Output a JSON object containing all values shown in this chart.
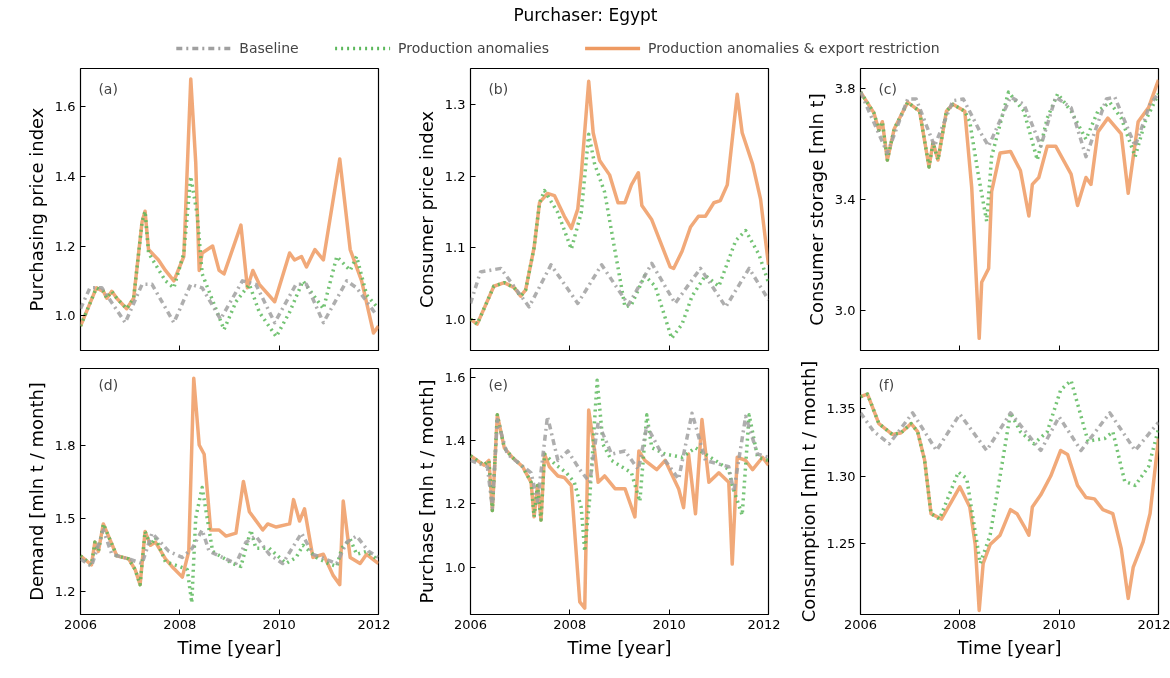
{
  "chart_data": [
    {
      "type": "line",
      "legend": "top",
      "ylabel": "Purchasing price index",
      "annotations": [
        "(a)"
      ],
      "xlim": [
        2006,
        2012
      ],
      "xticks": [
        2006,
        2008,
        2010,
        2012
      ],
      "ylim": [
        0.9,
        1.71
      ],
      "yticks": [
        {
          "value": 1,
          "label": "1.0"
        },
        1.2,
        1.4,
        1.6
      ],
      "tick_labels": "y",
      "series": [
        {
          "name": "Baseline",
          "color": "#a0a0a0",
          "line_style": "dashdot",
          "x": [
            2006,
            2006.19,
            2006.43,
            2006.9,
            2007.24,
            2007.44,
            2007.88,
            2008.22,
            2008.45,
            2008.82,
            2009.26,
            2009.53,
            2009.91,
            2010.34,
            2010.55,
            2010.89,
            2011.36,
            2011.56,
            2011.97
          ],
          "values": [
            1.02,
            1.08,
            1.08,
            0.98,
            1.09,
            1.09,
            0.98,
            1.09,
            1.08,
            0.99,
            1.1,
            1.09,
            0.98,
            1.09,
            1.09,
            0.98,
            1.1,
            1.08,
            1.0
          ]
        },
        {
          "name": "Production anomalies",
          "color": "#5cb85c",
          "line_style": "dotted",
          "x": [
            2006,
            2006.32,
            2006.46,
            2006.53,
            2006.63,
            2006.73,
            2006.93,
            2007.07,
            2007.24,
            2007.3,
            2007.37,
            2007.71,
            2007.88,
            2008.08,
            2008.22,
            2008.35,
            2008.45,
            2008.89,
            2009.13,
            2009.4,
            2009.6,
            2009.94,
            2010.21,
            2010.48,
            2010.89,
            2011.16,
            2011.43,
            2011.56,
            2011.76,
            2012
          ],
          "values": [
            0.97,
            1.08,
            1.07,
            1.05,
            1.07,
            1.05,
            1.02,
            1.05,
            1.27,
            1.3,
            1.18,
            1.1,
            1.08,
            1.18,
            1.4,
            1.29,
            1.12,
            0.96,
            1.04,
            1.09,
            1.01,
            0.94,
            1.01,
            1.1,
            1.02,
            1.17,
            1.13,
            1.17,
            1.06,
            1.02
          ]
        },
        {
          "name": "Production anomalies & export restriction",
          "color": "#ee9a62",
          "line_style": "solid",
          "x": [
            2006,
            2006.32,
            2006.46,
            2006.53,
            2006.63,
            2006.73,
            2006.93,
            2007.07,
            2007.24,
            2007.3,
            2007.37,
            2007.57,
            2007.71,
            2007.88,
            2008.08,
            2008.22,
            2008.32,
            2008.39,
            2008.45,
            2008.66,
            2008.79,
            2008.89,
            2009.23,
            2009.36,
            2009.47,
            2009.6,
            2009.91,
            2010.21,
            2010.31,
            2010.45,
            2010.55,
            2010.72,
            2010.89,
            2011.22,
            2011.43,
            2011.66,
            2011.9,
            2012
          ],
          "values": [
            0.97,
            1.08,
            1.07,
            1.05,
            1.07,
            1.05,
            1.02,
            1.05,
            1.27,
            1.3,
            1.19,
            1.16,
            1.13,
            1.1,
            1.17,
            1.68,
            1.44,
            1.13,
            1.18,
            1.2,
            1.13,
            1.12,
            1.26,
            1.08,
            1.13,
            1.09,
            1.04,
            1.18,
            1.16,
            1.17,
            1.14,
            1.19,
            1.16,
            1.45,
            1.19,
            1.1,
            0.95,
            0.97
          ]
        }
      ]
    },
    {
      "type": "line",
      "title": "Purchaser: Egypt",
      "ylabel": "Consumer price index",
      "annotations": [
        "(b)"
      ],
      "xlim": [
        2006,
        2012
      ],
      "xticks": [
        2006,
        2008,
        2010,
        2012
      ],
      "ylim": [
        0.956,
        1.351
      ],
      "yticks": [
        {
          "value": 1,
          "label": "1.0"
        },
        1.1,
        1.2,
        1.3
      ],
      "tick_labels": "y",
      "series": [
        {
          "color": "#a0a0a0",
          "line_style": "dashdot",
          "x": [
            2006,
            2006.2,
            2006.61,
            2007.18,
            2007.62,
            2008.16,
            2008.64,
            2009.18,
            2009.65,
            2010.12,
            2010.63,
            2011.14,
            2011.61,
            2012
          ],
          "values": [
            1.022,
            1.066,
            1.071,
            1.017,
            1.076,
            1.022,
            1.076,
            1.02,
            1.078,
            1.022,
            1.071,
            1.017,
            1.071,
            1.027
          ]
        },
        {
          "color": "#5cb85c",
          "line_style": "dotted",
          "x": [
            2006,
            2006.135,
            2006.47,
            2006.68,
            2006.88,
            2007.01,
            2007.11,
            2007.28,
            2007.39,
            2007.49,
            2007.76,
            2008.03,
            2008.23,
            2008.38,
            2008.5,
            2008.7,
            2009.11,
            2009.24,
            2009.51,
            2009.72,
            2010.05,
            2010.26,
            2010.46,
            2010.73,
            2011.0,
            2011.34,
            2011.54,
            2011.81,
            2012
          ],
          "values": [
            1.0,
            0.993,
            1.046,
            1.051,
            1.044,
            1.032,
            1.041,
            1.1,
            1.163,
            1.18,
            1.149,
            1.098,
            1.149,
            1.259,
            1.217,
            1.178,
            1.017,
            1.02,
            1.061,
            1.046,
            0.973,
            0.993,
            1.032,
            1.061,
            1.046,
            1.11,
            1.124,
            1.09,
            1.051
          ]
        },
        {
          "color": "#ee9a62",
          "line_style": "solid",
          "x": [
            2006,
            2006.135,
            2006.47,
            2006.68,
            2006.88,
            2007.01,
            2007.11,
            2007.28,
            2007.39,
            2007.55,
            2007.69,
            2007.89,
            2008.03,
            2008.16,
            2008.23,
            2008.38,
            2008.47,
            2008.6,
            2008.8,
            2008.97,
            2009.11,
            2009.24,
            2009.38,
            2009.45,
            2009.65,
            2010.02,
            2010.09,
            2010.26,
            2010.43,
            2010.59,
            2010.73,
            2010.9,
            2011.03,
            2011.17,
            2011.37,
            2011.47,
            2011.68,
            2011.84,
            2012
          ],
          "values": [
            1.0,
            0.993,
            1.046,
            1.051,
            1.044,
            1.032,
            1.041,
            1.1,
            1.163,
            1.176,
            1.173,
            1.144,
            1.127,
            1.154,
            1.202,
            1.333,
            1.261,
            1.222,
            1.202,
            1.163,
            1.163,
            1.188,
            1.205,
            1.159,
            1.139,
            1.073,
            1.071,
            1.095,
            1.129,
            1.144,
            1.144,
            1.163,
            1.166,
            1.188,
            1.315,
            1.261,
            1.217,
            1.168,
            1.076
          ]
        }
      ]
    },
    {
      "type": "line",
      "ylabel": "Consumer storage [mln t]",
      "annotations": [
        "(c)"
      ],
      "xlim": [
        2006,
        2012
      ],
      "xticks": [
        2006,
        2008,
        2010,
        2012
      ],
      "ylim": [
        2.855,
        3.872
      ],
      "yticks": [
        {
          "value": 3,
          "label": "3.0"
        },
        3.4,
        3.8
      ],
      "tick_labels": "y",
      "series": [
        {
          "color": "#a0a0a0",
          "line_style": "dashdot",
          "x": [
            2006,
            2006.54,
            2006.95,
            2007.12,
            2007.49,
            2007.86,
            2008.07,
            2008.41,
            2008.58,
            2009.02,
            2009.29,
            2009.63,
            2009.93,
            2010.24,
            2010.54,
            2010.95,
            2011.12,
            2011.53,
            2011.83,
            2012
          ],
          "values": [
            3.787,
            3.567,
            3.762,
            3.762,
            3.592,
            3.756,
            3.762,
            3.643,
            3.592,
            3.769,
            3.743,
            3.592,
            3.769,
            3.731,
            3.554,
            3.762,
            3.769,
            3.592,
            3.743,
            3.781
          ]
        },
        {
          "color": "#5cb85c",
          "line_style": "dotted",
          "x": [
            2006,
            2006.27,
            2006.37,
            2006.44,
            2006.54,
            2006.68,
            2006.95,
            2007.19,
            2007.38,
            2007.46,
            2007.56,
            2007.73,
            2007.86,
            2008.1,
            2008.2,
            2008.37,
            2008.54,
            2008.64,
            2008.98,
            2009.29,
            2009.56,
            2009.76,
            2009.97,
            2010.24,
            2010.54,
            2010.78,
            2011.02,
            2011.25,
            2011.53,
            2011.73,
            2012
          ],
          "values": [
            3.787,
            3.712,
            3.649,
            3.68,
            3.542,
            3.655,
            3.75,
            3.718,
            3.517,
            3.605,
            3.542,
            3.718,
            3.743,
            3.718,
            3.68,
            3.491,
            3.321,
            3.554,
            3.787,
            3.718,
            3.542,
            3.693,
            3.781,
            3.718,
            3.617,
            3.718,
            3.75,
            3.693,
            3.554,
            3.68,
            3.781
          ]
        },
        {
          "color": "#ee9a62",
          "line_style": "solid",
          "x": [
            2006,
            2006.27,
            2006.37,
            2006.44,
            2006.54,
            2006.68,
            2006.95,
            2007.19,
            2007.38,
            2007.46,
            2007.56,
            2007.73,
            2007.86,
            2008.1,
            2008.24,
            2008.39,
            2008.44,
            2008.58,
            2008.64,
            2008.81,
            2009.02,
            2009.22,
            2009.39,
            2009.46,
            2009.59,
            2009.76,
            2009.93,
            2010.24,
            2010.37,
            2010.54,
            2010.64,
            2010.78,
            2010.98,
            2011.25,
            2011.39,
            2011.59,
            2011.8,
            2012
          ],
          "values": [
            3.787,
            3.712,
            3.649,
            3.68,
            3.542,
            3.655,
            3.75,
            3.718,
            3.517,
            3.605,
            3.542,
            3.718,
            3.743,
            3.718,
            3.441,
            2.899,
            3.101,
            3.151,
            3.428,
            3.567,
            3.573,
            3.504,
            3.34,
            3.454,
            3.479,
            3.592,
            3.592,
            3.491,
            3.378,
            3.479,
            3.454,
            3.643,
            3.693,
            3.636,
            3.422,
            3.68,
            3.731,
            3.831
          ]
        }
      ]
    },
    {
      "type": "line",
      "ylabel": "Demand [mln t / month]",
      "xlabel": "Time [year]",
      "annotations": [
        "(d)"
      ],
      "xlim": [
        2006,
        2012
      ],
      "xticks": [
        2006,
        2008,
        2010,
        2012
      ],
      "ylim": [
        1.106,
        2.119
      ],
      "yticks": [
        1.2,
        1.5,
        1.8
      ],
      "series": [
        {
          "color": "#a0a0a0",
          "line_style": "dashdot",
          "x": [
            2006,
            2006.22,
            2006.46,
            2006.63,
            2006.97,
            2007.24,
            2007.44,
            2007.78,
            2008.05,
            2008.25,
            2008.45,
            2008.59,
            2009.13,
            2009.33,
            2009.53,
            2009.8,
            2010.07,
            2010.45,
            2010.68,
            2011.16,
            2011.36,
            2011.56,
            2011.8,
            2012
          ],
          "values": [
            1.335,
            1.304,
            1.454,
            1.354,
            1.335,
            1.316,
            1.441,
            1.366,
            1.341,
            1.379,
            1.454,
            1.366,
            1.316,
            1.404,
            1.429,
            1.354,
            1.316,
            1.441,
            1.354,
            1.316,
            1.404,
            1.429,
            1.366,
            1.341
          ]
        },
        {
          "color": "#5cb85c",
          "line_style": "dotted",
          "x": [
            2006,
            2006.22,
            2006.29,
            2006.36,
            2006.46,
            2006.73,
            2006.97,
            2007.1,
            2007.2,
            2007.3,
            2007.41,
            2007.51,
            2007.71,
            2007.99,
            2008.15,
            2008.24,
            2008.32,
            2008.45,
            2008.66,
            2009.06,
            2009.23,
            2009.43,
            2009.53,
            2009.8,
            2010.14,
            2010.34,
            2010.48,
            2010.75,
            2010.99,
            2011.16,
            2011.26,
            2011.43,
            2011.56,
            2011.76,
            2012
          ],
          "values": [
            1.348,
            1.31,
            1.404,
            1.366,
            1.479,
            1.348,
            1.335,
            1.291,
            1.229,
            1.448,
            1.391,
            1.423,
            1.323,
            1.304,
            1.291,
            1.154,
            1.504,
            1.629,
            1.366,
            1.316,
            1.304,
            1.454,
            1.379,
            1.379,
            1.316,
            1.341,
            1.391,
            1.341,
            1.316,
            1.304,
            1.379,
            1.416,
            1.354,
            1.366,
            1.329
          ]
        },
        {
          "color": "#ee9a62",
          "line_style": "solid",
          "x": [
            2006,
            2006.22,
            2006.29,
            2006.36,
            2006.46,
            2006.73,
            2006.97,
            2007.1,
            2007.2,
            2007.3,
            2007.41,
            2007.51,
            2007.71,
            2007.84,
            2008.05,
            2008.18,
            2008.28,
            2008.39,
            2008.49,
            2008.62,
            2008.79,
            2008.93,
            2009.13,
            2009.28,
            2009.4,
            2009.67,
            2009.77,
            2009.94,
            2010.21,
            2010.29,
            2010.41,
            2010.51,
            2010.68,
            2010.89,
            2011.09,
            2011.22,
            2011.29,
            2011.43,
            2011.63,
            2011.76,
            2012
          ],
          "values": [
            1.348,
            1.31,
            1.404,
            1.366,
            1.479,
            1.348,
            1.335,
            1.291,
            1.229,
            1.448,
            1.391,
            1.404,
            1.335,
            1.304,
            1.26,
            1.366,
            2.079,
            1.804,
            1.766,
            1.454,
            1.454,
            1.429,
            1.441,
            1.654,
            1.529,
            1.454,
            1.479,
            1.466,
            1.479,
            1.579,
            1.491,
            1.541,
            1.341,
            1.354,
            1.266,
            1.229,
            1.573,
            1.341,
            1.316,
            1.354,
            1.316
          ]
        }
      ]
    },
    {
      "type": "line",
      "ylabel": "Purchase [mln t / month]",
      "xlabel": "Time [year]",
      "annotations": [
        "(e)"
      ],
      "xlim": [
        2006,
        2012
      ],
      "xticks": [
        2006,
        2008,
        2010,
        2012
      ],
      "ylim": [
        0.851,
        1.627
      ],
      "yticks": [
        {
          "value": 1,
          "label": "1.0"
        },
        1.2,
        1.4,
        1.6
      ],
      "series": [
        {
          "color": "#a0a0a0",
          "line_style": "dashdot",
          "x": [
            2006,
            2006.34,
            2006.44,
            2006.54,
            2006.74,
            2007.22,
            2007.35,
            2007.55,
            2007.76,
            2007.96,
            2008.2,
            2008.4,
            2008.57,
            2008.84,
            2009.11,
            2009.38,
            2009.55,
            2009.92,
            2010.19,
            2010.46,
            2010.73,
            2011.2,
            2011.3,
            2011.54,
            2011.78,
            2012
          ],
          "values": [
            1.337,
            1.317,
            1.188,
            1.466,
            1.357,
            1.298,
            1.208,
            1.476,
            1.337,
            1.367,
            1.308,
            1.268,
            1.456,
            1.357,
            1.367,
            1.308,
            1.446,
            1.337,
            1.278,
            1.486,
            1.337,
            1.317,
            1.238,
            1.476,
            1.357,
            1.347
          ]
        },
        {
          "color": "#5cb85c",
          "line_style": "dotted",
          "x": [
            2006,
            2006.27,
            2006.37,
            2006.44,
            2006.54,
            2006.68,
            2006.84,
            2007.05,
            2007.22,
            2007.28,
            2007.35,
            2007.42,
            2007.49,
            2007.69,
            2007.93,
            2008.09,
            2008.23,
            2008.3,
            2008.4,
            2008.55,
            2008.67,
            2008.84,
            2009.24,
            2009.41,
            2009.55,
            2009.65,
            2009.92,
            2010.26,
            2010.53,
            2010.93,
            2011.2,
            2011.27,
            2011.47,
            2011.61,
            2011.78,
            2012
          ],
          "values": [
            1.352,
            1.322,
            1.337,
            1.179,
            1.481,
            1.377,
            1.347,
            1.317,
            1.268,
            1.159,
            1.258,
            1.149,
            1.357,
            1.327,
            1.298,
            1.268,
            1.188,
            1.05,
            1.218,
            1.59,
            1.387,
            1.337,
            1.298,
            1.208,
            1.481,
            1.377,
            1.357,
            1.347,
            1.377,
            1.337,
            1.308,
            1.258,
            1.164,
            1.481,
            1.347,
            1.337
          ]
        },
        {
          "color": "#ee9a62",
          "line_style": "solid",
          "x": [
            2006,
            2006.27,
            2006.37,
            2006.44,
            2006.54,
            2006.68,
            2006.84,
            2007.05,
            2007.22,
            2007.28,
            2007.35,
            2007.42,
            2007.49,
            2007.59,
            2007.76,
            2007.89,
            2008.03,
            2008.2,
            2008.3,
            2008.38,
            2008.5,
            2008.57,
            2008.7,
            2008.91,
            2009.11,
            2009.31,
            2009.39,
            2009.51,
            2009.75,
            2009.92,
            2010.19,
            2010.29,
            2010.39,
            2010.53,
            2010.66,
            2010.8,
            2011.0,
            2011.2,
            2011.27,
            2011.37,
            2011.54,
            2011.68,
            2011.88,
            2012
          ],
          "values": [
            1.352,
            1.322,
            1.337,
            1.179,
            1.481,
            1.377,
            1.347,
            1.317,
            1.268,
            1.159,
            1.258,
            1.149,
            1.357,
            1.317,
            1.288,
            1.283,
            1.258,
            0.891,
            0.871,
            1.496,
            1.367,
            1.268,
            1.288,
            1.248,
            1.248,
            1.159,
            1.367,
            1.337,
            1.308,
            1.337,
            1.248,
            1.188,
            1.357,
            1.169,
            1.466,
            1.268,
            1.298,
            1.268,
            1.01,
            1.347,
            1.337,
            1.308,
            1.347,
            1.322
          ]
        }
      ]
    },
    {
      "type": "line",
      "ylabel": "Consumption [mln t / month]",
      "xlabel": "Time [year]",
      "annotations": [
        "(f)"
      ],
      "xlim": [
        2006,
        2012
      ],
      "xticks": [
        2006,
        2008,
        2010,
        2012
      ],
      "ylim": [
        1.197,
        1.38
      ],
      "yticks": [
        1.25,
        {
          "value": 1.3,
          "label": "1.30"
        },
        1.35
      ],
      "series": [
        {
          "color": "#a0a0a0",
          "line_style": "dashdot",
          "x": [
            2006,
            2006.27,
            2006.58,
            2007.05,
            2007.53,
            2008.0,
            2008.54,
            2009.02,
            2009.63,
            2010.0,
            2010.44,
            2011.02,
            2011.53,
            2012
          ],
          "values": [
            1.347,
            1.333,
            1.324,
            1.347,
            1.319,
            1.346,
            1.319,
            1.347,
            1.319,
            1.344,
            1.319,
            1.347,
            1.319,
            1.34
          ]
        },
        {
          "color": "#5cb85c",
          "line_style": "dotted",
          "x": [
            2006,
            2006.14,
            2006.37,
            2006.64,
            2006.81,
            2007.02,
            2007.15,
            2007.29,
            2007.42,
            2007.59,
            2007.97,
            2008.14,
            2008.41,
            2008.61,
            2008.81,
            2009.02,
            2009.22,
            2009.49,
            2009.76,
            2010.03,
            2010.24,
            2010.58,
            2010.92,
            2011.08,
            2011.32,
            2011.53,
            2011.8,
            2012
          ],
          "values": [
            1.359,
            1.361,
            1.339,
            1.331,
            1.332,
            1.339,
            1.333,
            1.312,
            1.272,
            1.268,
            1.303,
            1.298,
            1.235,
            1.256,
            1.3,
            1.347,
            1.333,
            1.324,
            1.333,
            1.364,
            1.371,
            1.326,
            1.328,
            1.333,
            1.296,
            1.293,
            1.307,
            1.335
          ]
        },
        {
          "color": "#ee9a62",
          "line_style": "solid",
          "x": [
            2006,
            2006.14,
            2006.37,
            2006.64,
            2006.81,
            2007.02,
            2007.15,
            2007.29,
            2007.42,
            2007.63,
            2007.8,
            2008.0,
            2008.2,
            2008.31,
            2008.39,
            2008.47,
            2008.61,
            2008.81,
            2009.02,
            2009.15,
            2009.29,
            2009.39,
            2009.46,
            2009.63,
            2009.83,
            2010.03,
            2010.17,
            2010.37,
            2010.54,
            2010.71,
            2010.88,
            2011.08,
            2011.25,
            2011.39,
            2011.49,
            2011.69,
            2011.83,
            2012
          ],
          "values": [
            1.359,
            1.361,
            1.339,
            1.331,
            1.332,
            1.339,
            1.333,
            1.312,
            1.272,
            1.268,
            1.279,
            1.292,
            1.277,
            1.249,
            1.2,
            1.235,
            1.249,
            1.256,
            1.275,
            1.272,
            1.263,
            1.256,
            1.277,
            1.286,
            1.3,
            1.319,
            1.316,
            1.293,
            1.284,
            1.283,
            1.275,
            1.272,
            1.246,
            1.209,
            1.232,
            1.251,
            1.272,
            1.328
          ]
        }
      ]
    }
  ]
}
